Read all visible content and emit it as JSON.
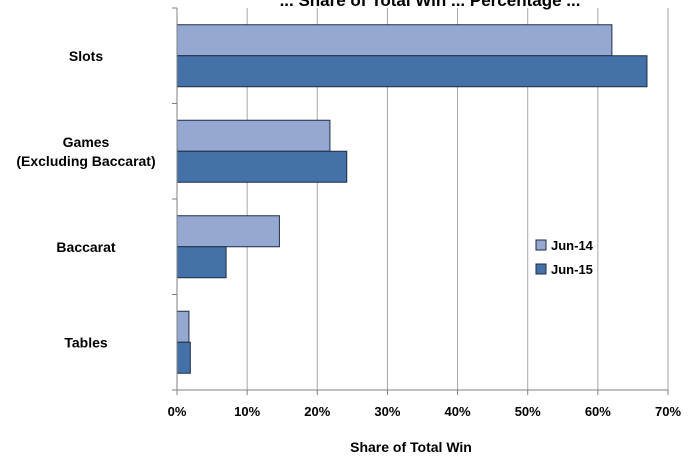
{
  "chart_data": {
    "type": "bar",
    "orientation": "horizontal",
    "title": "... Share of Total Win ... Percentage ...",
    "categories": [
      "Slots",
      "Games\n(Excluding Baccarat)",
      "Baccarat",
      "Tables"
    ],
    "series": [
      {
        "name": "Jun-14",
        "values": [
          62.0,
          21.8,
          14.6,
          1.7
        ],
        "color": "#95a8d2"
      },
      {
        "name": "Jun-15",
        "values": [
          67.0,
          24.2,
          7.0,
          1.9
        ],
        "color": "#4472a8"
      }
    ],
    "xlabel": "Share of Total Win",
    "ylabel": "",
    "xlim": [
      0,
      70
    ],
    "ticks": [
      "0%",
      "10%",
      "20%",
      "30%",
      "40%",
      "50%",
      "60%",
      "70%"
    ],
    "grid": "vertical",
    "legend_position": "right"
  }
}
